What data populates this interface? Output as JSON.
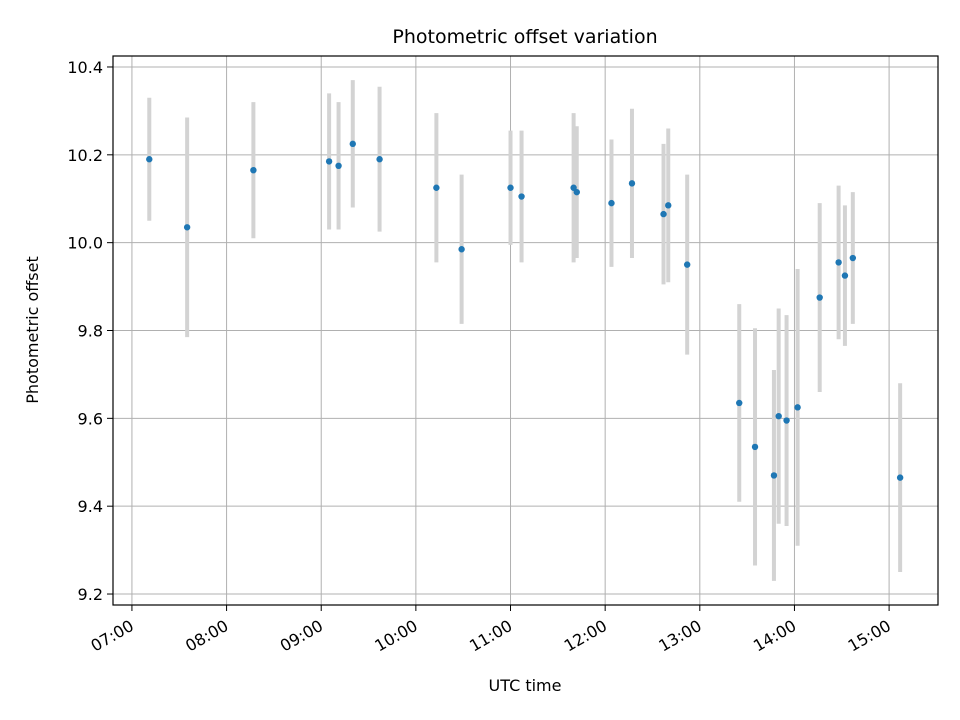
{
  "chart_data": {
    "type": "scatter",
    "title": "Photometric offset variation",
    "xlabel": "UTC time",
    "ylabel": "Photometric offset",
    "x_ticks": [
      "07:00",
      "08:00",
      "09:00",
      "10:00",
      "11:00",
      "12:00",
      "13:00",
      "14:00",
      "15:00"
    ],
    "y_ticks": [
      "9.2",
      "9.4",
      "9.6",
      "9.8",
      "10.0",
      "10.2",
      "10.4"
    ],
    "xlim": [
      "06:48",
      "15:31"
    ],
    "ylim": [
      9.175,
      10.425
    ],
    "grid": true,
    "marker_color": "#1f77b4",
    "errorbar_color": "#d3d3d3",
    "points": [
      {
        "time": "07:11",
        "y": 10.19,
        "err": 0.14
      },
      {
        "time": "07:35",
        "y": 10.035,
        "err": 0.25
      },
      {
        "time": "08:17",
        "y": 10.165,
        "err": 0.155
      },
      {
        "time": "09:05",
        "y": 10.185,
        "err": 0.155
      },
      {
        "time": "09:11",
        "y": 10.175,
        "err": 0.145
      },
      {
        "time": "09:20",
        "y": 10.225,
        "err": 0.145
      },
      {
        "time": "09:37",
        "y": 10.19,
        "err": 0.165
      },
      {
        "time": "10:13",
        "y": 10.125,
        "err": 0.17
      },
      {
        "time": "10:29",
        "y": 9.985,
        "err": 0.17
      },
      {
        "time": "11:00",
        "y": 10.125,
        "err": 0.13
      },
      {
        "time": "11:07",
        "y": 10.105,
        "err": 0.15
      },
      {
        "time": "11:40",
        "y": 10.125,
        "err": 0.17
      },
      {
        "time": "11:42",
        "y": 10.115,
        "err": 0.15
      },
      {
        "time": "12:04",
        "y": 10.09,
        "err": 0.145
      },
      {
        "time": "12:17",
        "y": 10.135,
        "err": 0.17
      },
      {
        "time": "12:37",
        "y": 10.065,
        "err": 0.16
      },
      {
        "time": "12:40",
        "y": 10.085,
        "err": 0.175
      },
      {
        "time": "12:52",
        "y": 9.95,
        "err": 0.205
      },
      {
        "time": "13:25",
        "y": 9.635,
        "err": 0.225
      },
      {
        "time": "13:35",
        "y": 9.535,
        "err": 0.27
      },
      {
        "time": "13:47",
        "y": 9.47,
        "err": 0.24
      },
      {
        "time": "13:50",
        "y": 9.605,
        "err": 0.245
      },
      {
        "time": "13:55",
        "y": 9.595,
        "err": 0.24
      },
      {
        "time": "14:02",
        "y": 9.625,
        "err": 0.315
      },
      {
        "time": "14:16",
        "y": 9.875,
        "err": 0.215
      },
      {
        "time": "14:28",
        "y": 9.955,
        "err": 0.175
      },
      {
        "time": "14:32",
        "y": 9.925,
        "err": 0.16
      },
      {
        "time": "14:37",
        "y": 9.965,
        "err": 0.15
      },
      {
        "time": "15:07",
        "y": 9.465,
        "err": 0.215
      }
    ]
  }
}
